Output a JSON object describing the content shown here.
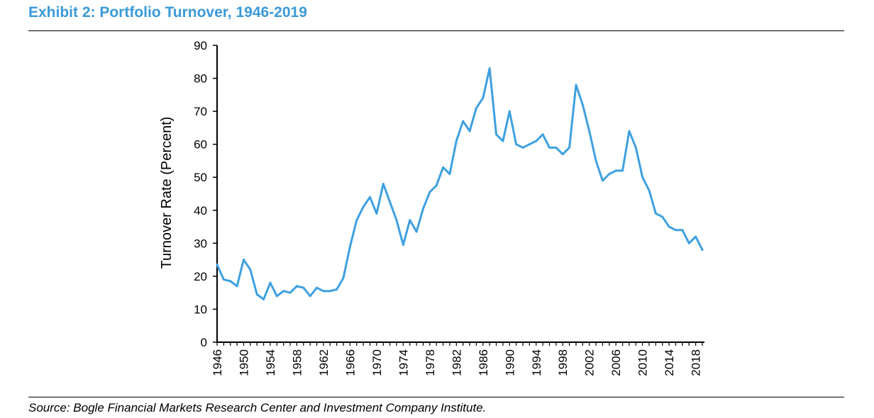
{
  "exhibit": {
    "title": "Exhibit 2: Portfolio Turnover, 1946-2019",
    "source": "Source: Bogle Financial Markets Research Center and Investment Company Institute."
  },
  "colors": {
    "title": "#3a9ad9",
    "line": "#3fa0e0",
    "axis": "#000000"
  },
  "chart_data": {
    "type": "line",
    "title": "",
    "xlabel": "",
    "ylabel": "Turnover Rate (Percent)",
    "ylim": [
      0,
      90
    ],
    "yticks": [
      0,
      10,
      20,
      30,
      40,
      50,
      60,
      70,
      80,
      90
    ],
    "xlim": [
      1946,
      2019
    ],
    "xtick_labels": [
      "1946",
      "1950",
      "1954",
      "1958",
      "1962",
      "1966",
      "1970",
      "1974",
      "1978",
      "1982",
      "1986",
      "1990",
      "1994",
      "1998",
      "2002",
      "2006",
      "2010",
      "2014",
      "2018"
    ],
    "grid": false,
    "legend": "none",
    "x": [
      1946,
      1947,
      1948,
      1949,
      1950,
      1951,
      1952,
      1953,
      1954,
      1955,
      1956,
      1957,
      1958,
      1959,
      1960,
      1961,
      1962,
      1963,
      1964,
      1965,
      1966,
      1967,
      1968,
      1969,
      1970,
      1971,
      1972,
      1973,
      1974,
      1975,
      1976,
      1977,
      1978,
      1979,
      1980,
      1981,
      1982,
      1983,
      1984,
      1985,
      1986,
      1987,
      1988,
      1989,
      1990,
      1991,
      1992,
      1993,
      1994,
      1995,
      1996,
      1997,
      1998,
      1999,
      2000,
      2001,
      2002,
      2003,
      2004,
      2005,
      2006,
      2007,
      2008,
      2009,
      2010,
      2011,
      2012,
      2013,
      2014,
      2015,
      2016,
      2017,
      2018,
      2019
    ],
    "series": [
      {
        "values": [
          23.5,
          19,
          18.5,
          17,
          25,
          22,
          14.5,
          13,
          18,
          14,
          15.5,
          15,
          17,
          16.5,
          14,
          16.5,
          15.5,
          15.5,
          16,
          19.5,
          29,
          37,
          41,
          44,
          39,
          48,
          42.5,
          37,
          29.5,
          37,
          33.5,
          40.5,
          45.5,
          47.5,
          53,
          51,
          61,
          67,
          64,
          71,
          74,
          83,
          63,
          61,
          70,
          60,
          59,
          60,
          61,
          63,
          59,
          59,
          57,
          59,
          78,
          72,
          64,
          55,
          49,
          51,
          52,
          52,
          64,
          59,
          50,
          46,
          39,
          38,
          35,
          34,
          34,
          30,
          32,
          28
        ]
      }
    ]
  }
}
